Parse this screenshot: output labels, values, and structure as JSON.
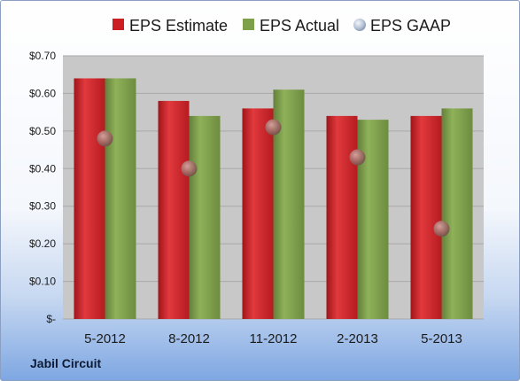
{
  "company": "Jabil Circuit",
  "chart_data": {
    "type": "bar",
    "categories": [
      "5-2012",
      "8-2012",
      "11-2012",
      "2-2013",
      "5-2013"
    ],
    "series": [
      {
        "name": "EPS Estimate",
        "kind": "bar",
        "color": "#cc1f24",
        "values": [
          0.64,
          0.58,
          0.56,
          0.54,
          0.54
        ]
      },
      {
        "name": "EPS Actual",
        "kind": "bar",
        "color": "#7fa04a",
        "values": [
          0.64,
          0.54,
          0.61,
          0.53,
          0.56
        ]
      },
      {
        "name": "EPS GAAP",
        "kind": "marker",
        "color": "#b9c8dc",
        "values": [
          0.48,
          0.4,
          0.51,
          0.43,
          0.24
        ]
      }
    ],
    "y_ticks": [
      {
        "value": 0.7,
        "label": "$0.70"
      },
      {
        "value": 0.6,
        "label": "$0.60"
      },
      {
        "value": 0.5,
        "label": "$0.50"
      },
      {
        "value": 0.4,
        "label": "$0.40"
      },
      {
        "value": 0.3,
        "label": "$0.30"
      },
      {
        "value": 0.2,
        "label": "$0.20"
      },
      {
        "value": 0.1,
        "label": "$0.10"
      },
      {
        "value": 0.0,
        "label": "$-"
      }
    ],
    "ylim": [
      0,
      0.7
    ],
    "grid": true,
    "legend": "top"
  }
}
